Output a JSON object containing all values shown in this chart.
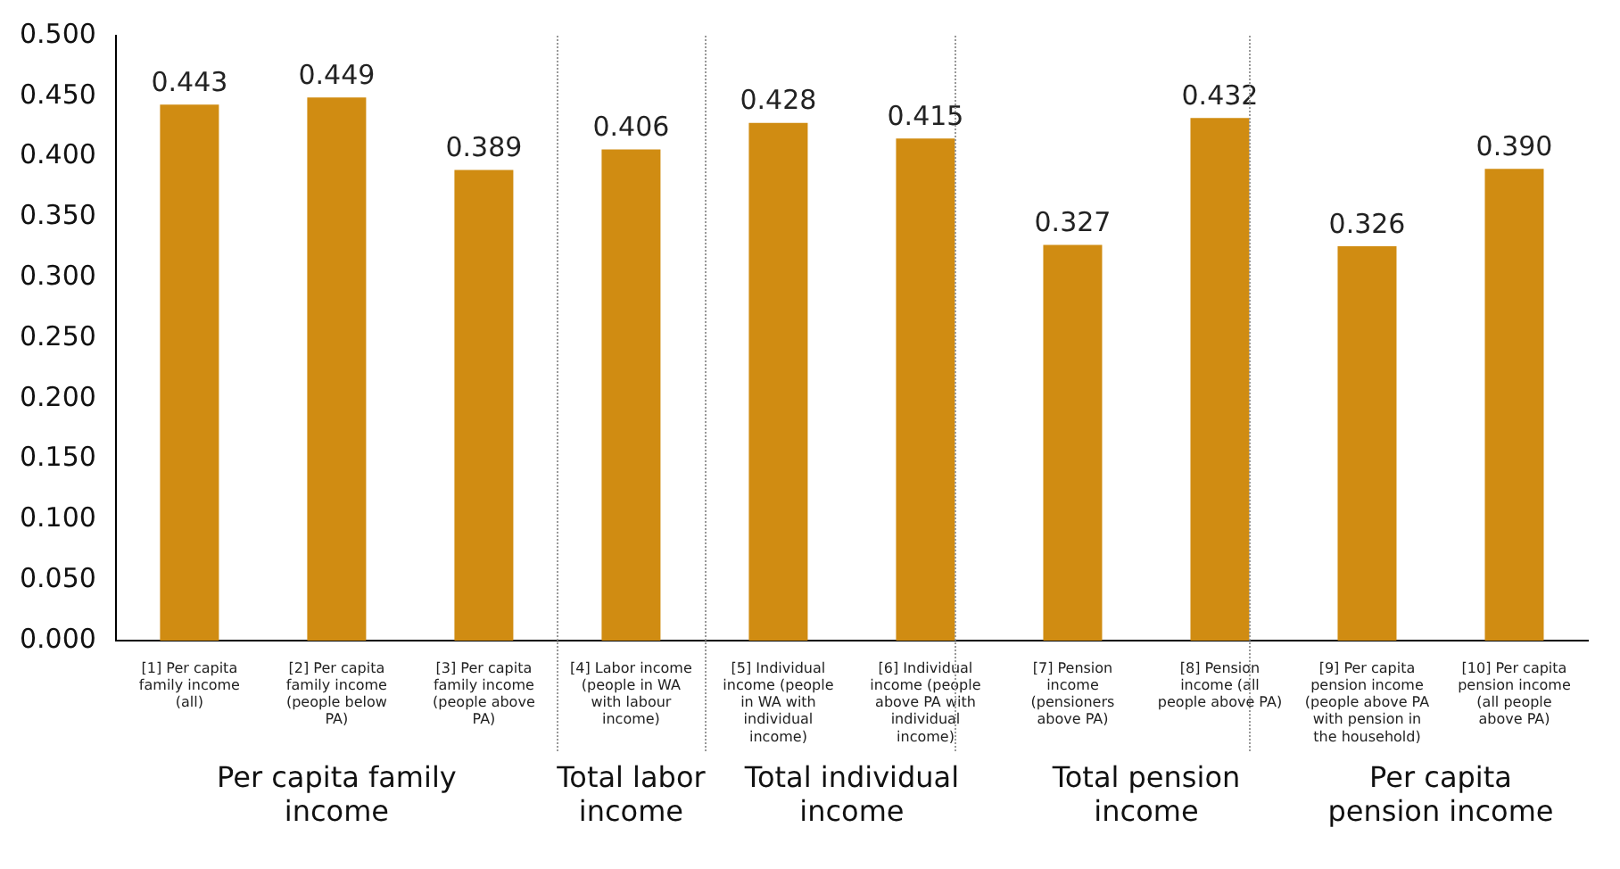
{
  "chart_data": {
    "type": "bar",
    "categories": [
      "[1] Per capita family income (all)",
      "[2] Per capita family income (people below PA)",
      "[3] Per capita family income (people above PA)",
      "[4] Labor income (people in WA with labour income)",
      "[5] Individual income (people in WA with individual income)",
      "[6] Individual income (people above PA with individual income)",
      "[7] Pension income (pensioners above PA)",
      "[8] Pension income (all people above PA)",
      "[9] Per capita pension income (people above PA with pension in the household)",
      "[10] Per capita pension income (all people above PA)"
    ],
    "values": [
      0.443,
      0.449,
      0.389,
      0.406,
      0.428,
      0.415,
      0.327,
      0.432,
      0.326,
      0.39
    ],
    "color": "#d08c12",
    "ylim": [
      0,
      0.5
    ],
    "yticks": [
      {
        "value": 0,
        "label": "0.000"
      },
      {
        "value": 0.05,
        "label": "0.050"
      },
      {
        "value": 0.1,
        "label": "0.100"
      },
      {
        "value": 0.15,
        "label": "0.150"
      },
      {
        "value": 0.2,
        "label": "0.200"
      },
      {
        "value": 0.25,
        "label": "0.250"
      },
      {
        "value": 0.3,
        "label": "0.300"
      },
      {
        "value": 0.35,
        "label": "0.350"
      },
      {
        "value": 0.4,
        "label": "0.400"
      },
      {
        "value": 0.45,
        "label": "0.450"
      },
      {
        "value": 0.5,
        "label": "0.500"
      }
    ],
    "value_labels": [
      "0.443",
      "0.449",
      "0.389",
      "0.406",
      "0.428",
      "0.415",
      "0.327",
      "0.432",
      "0.326",
      "0.390"
    ],
    "grid": false,
    "legend": false,
    "annotations": [
      "Per capita family income",
      "Total labor income",
      "Total individual income",
      "Total pension income",
      "Per capita pension income"
    ]
  }
}
